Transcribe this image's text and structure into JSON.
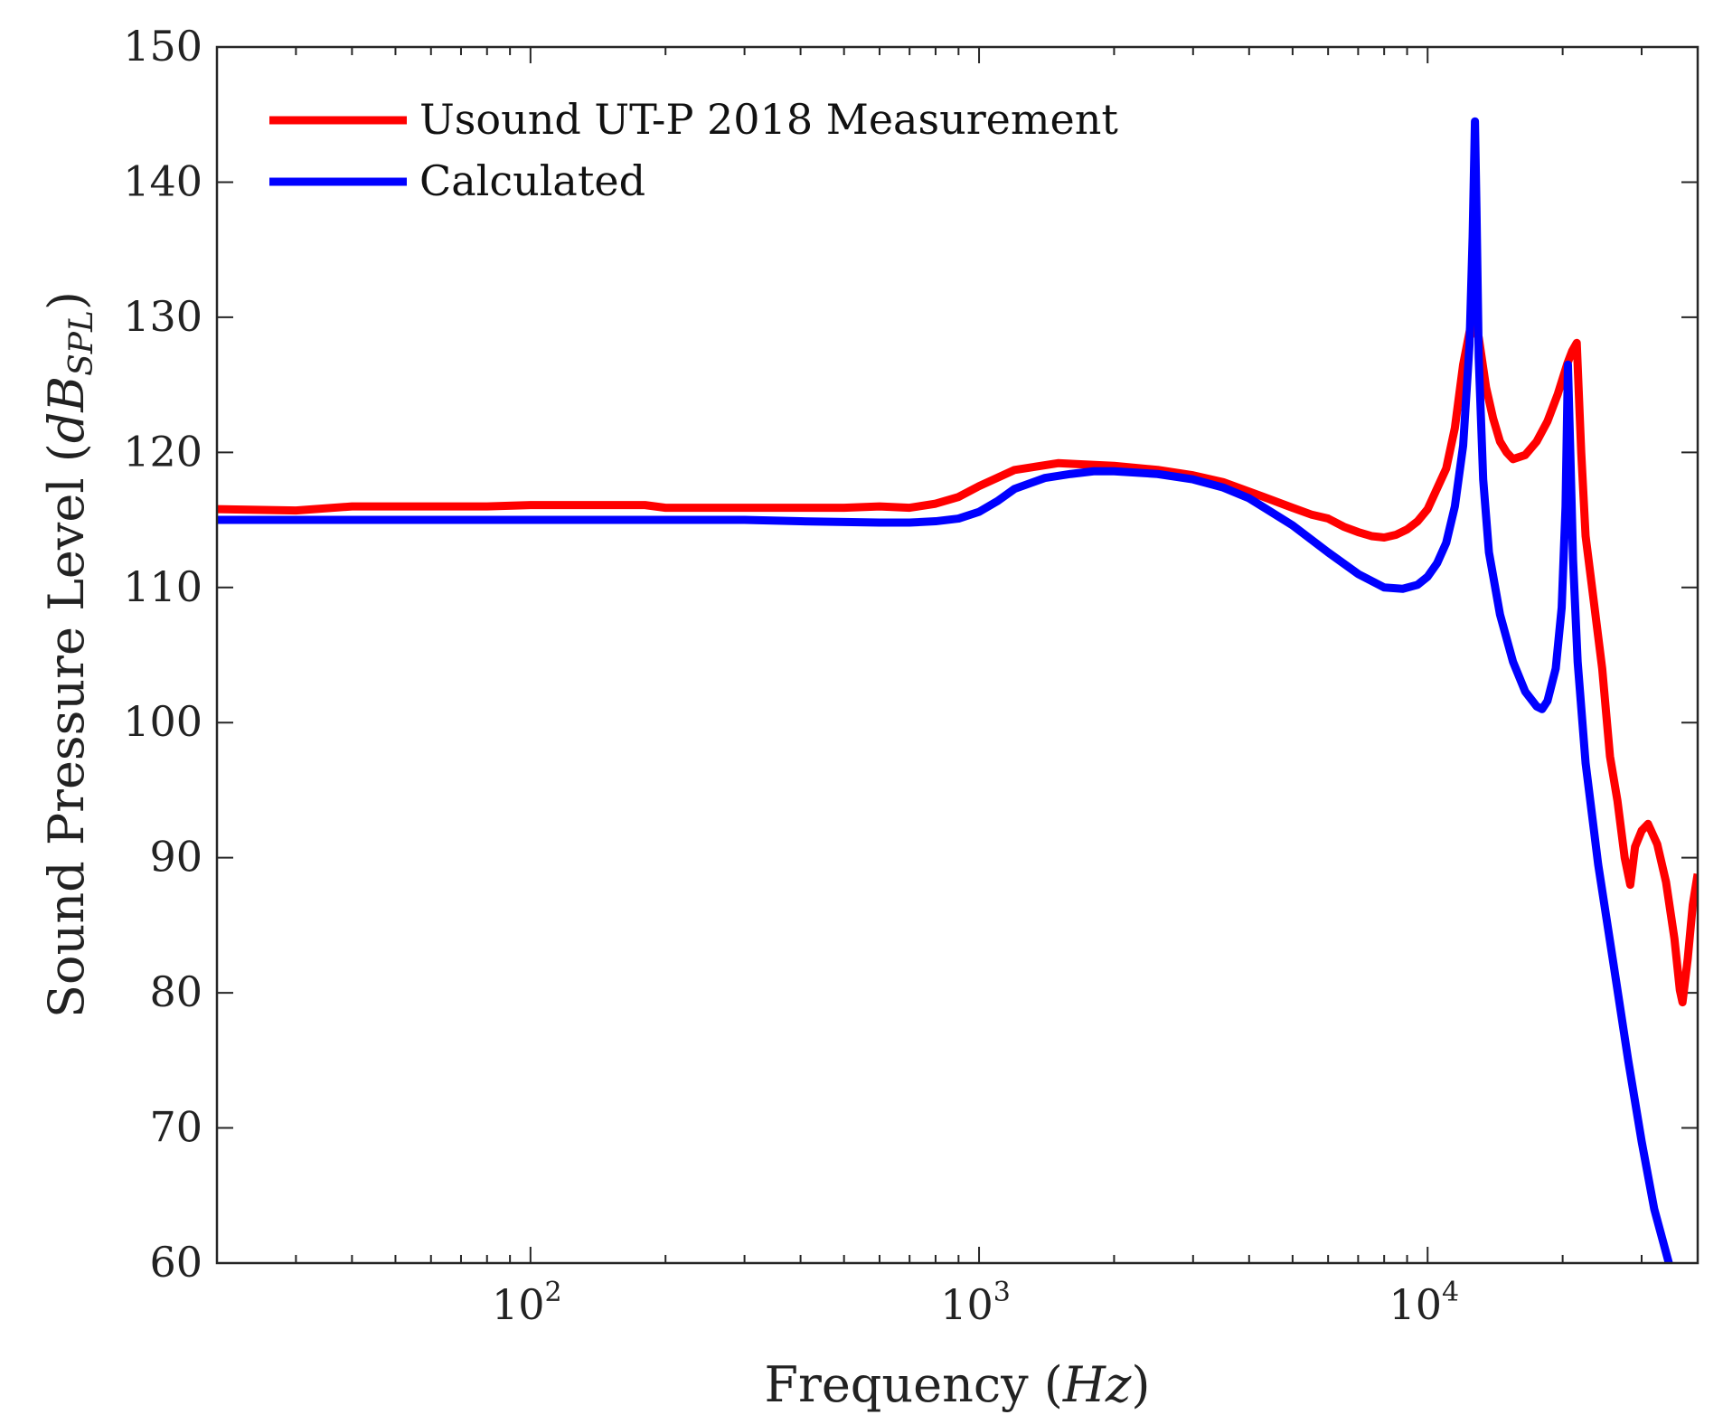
{
  "chart_data": {
    "type": "line",
    "xscale": "log",
    "xlim": [
      20,
      40000
    ],
    "ylim": [
      60,
      150
    ],
    "xlabel": {
      "prefix": "Frequency (",
      "var": "Hz",
      "suffix": ")"
    },
    "ylabel": {
      "prefix": "Sound Pressure Level (",
      "var": "dB",
      "sub": "SPL",
      "suffix": ")"
    },
    "x_ticks": [
      {
        "value": 100,
        "base": "10",
        "exp": "2"
      },
      {
        "value": 1000,
        "base": "10",
        "exp": "3"
      },
      {
        "value": 10000,
        "base": "10",
        "exp": "4"
      }
    ],
    "y_ticks": [
      {
        "value": 60,
        "label": "60"
      },
      {
        "value": 70,
        "label": "70"
      },
      {
        "value": 80,
        "label": "80"
      },
      {
        "value": 90,
        "label": "90"
      },
      {
        "value": 100,
        "label": "100"
      },
      {
        "value": 110,
        "label": "110"
      },
      {
        "value": 120,
        "label": "120"
      },
      {
        "value": 130,
        "label": "130"
      },
      {
        "value": 140,
        "label": "140"
      },
      {
        "value": 150,
        "label": "150"
      }
    ],
    "legend_position": "top-left",
    "series": [
      {
        "name": "Usound UT-P 2018 Measurement",
        "color": "#ff0000",
        "points": [
          [
            20,
            115.8
          ],
          [
            30,
            115.7
          ],
          [
            40,
            116.0
          ],
          [
            60,
            116.0
          ],
          [
            80,
            116.0
          ],
          [
            100,
            116.1
          ],
          [
            150,
            116.1
          ],
          [
            180,
            116.1
          ],
          [
            200,
            115.9
          ],
          [
            300,
            115.9
          ],
          [
            500,
            115.9
          ],
          [
            600,
            116.0
          ],
          [
            700,
            115.9
          ],
          [
            800,
            116.2
          ],
          [
            900,
            116.7
          ],
          [
            1000,
            117.5
          ],
          [
            1200,
            118.7
          ],
          [
            1500,
            119.2
          ],
          [
            2000,
            119.0
          ],
          [
            2500,
            118.7
          ],
          [
            3000,
            118.3
          ],
          [
            3500,
            117.8
          ],
          [
            4000,
            117.1
          ],
          [
            5000,
            115.9
          ],
          [
            5500,
            115.4
          ],
          [
            6000,
            115.1
          ],
          [
            6500,
            114.5
          ],
          [
            7000,
            114.1
          ],
          [
            7500,
            113.8
          ],
          [
            8000,
            113.7
          ],
          [
            8500,
            113.9
          ],
          [
            9000,
            114.3
          ],
          [
            9500,
            114.9
          ],
          [
            10000,
            115.8
          ],
          [
            11000,
            118.8
          ],
          [
            11500,
            121.8
          ],
          [
            12000,
            126.5
          ],
          [
            12500,
            129.5
          ],
          [
            13000,
            128.5
          ],
          [
            13500,
            124.8
          ],
          [
            14000,
            122.5
          ],
          [
            14500,
            120.8
          ],
          [
            15000,
            120.0
          ],
          [
            15500,
            119.5
          ],
          [
            16500,
            119.8
          ],
          [
            17500,
            120.8
          ],
          [
            18500,
            122.3
          ],
          [
            19500,
            124.3
          ],
          [
            20500,
            126.6
          ],
          [
            21000,
            127.5
          ],
          [
            21500,
            128.1
          ],
          [
            22000,
            120.0
          ],
          [
            22500,
            113.8
          ],
          [
            23500,
            108.8
          ],
          [
            24500,
            104.0
          ],
          [
            25500,
            97.5
          ],
          [
            26500,
            94.2
          ],
          [
            27500,
            90.0
          ],
          [
            28300,
            88.0
          ],
          [
            29000,
            90.8
          ],
          [
            30000,
            92.0
          ],
          [
            31000,
            92.5
          ],
          [
            32500,
            91.0
          ],
          [
            34000,
            88.2
          ],
          [
            35500,
            84.0
          ],
          [
            36500,
            80.2
          ],
          [
            37000,
            79.3
          ],
          [
            38000,
            82.5
          ],
          [
            39000,
            86.5
          ],
          [
            40000,
            88.8
          ]
        ]
      },
      {
        "name": "Calculated",
        "color": "#0000ff",
        "points": [
          [
            20,
            115.0
          ],
          [
            50,
            115.0
          ],
          [
            100,
            115.0
          ],
          [
            200,
            115.0
          ],
          [
            300,
            115.0
          ],
          [
            400,
            114.9
          ],
          [
            600,
            114.8
          ],
          [
            700,
            114.8
          ],
          [
            800,
            114.9
          ],
          [
            900,
            115.1
          ],
          [
            1000,
            115.6
          ],
          [
            1100,
            116.4
          ],
          [
            1200,
            117.3
          ],
          [
            1400,
            118.1
          ],
          [
            1600,
            118.4
          ],
          [
            1800,
            118.6
          ],
          [
            2000,
            118.6
          ],
          [
            2500,
            118.4
          ],
          [
            3000,
            118.0
          ],
          [
            3500,
            117.4
          ],
          [
            4000,
            116.6
          ],
          [
            5000,
            114.6
          ],
          [
            6000,
            112.6
          ],
          [
            7000,
            111.0
          ],
          [
            8000,
            110.0
          ],
          [
            8800,
            109.9
          ],
          [
            9500,
            110.2
          ],
          [
            10000,
            110.8
          ],
          [
            10500,
            111.8
          ],
          [
            11000,
            113.3
          ],
          [
            11500,
            116.0
          ],
          [
            12000,
            120.5
          ],
          [
            12400,
            128.0
          ],
          [
            12600,
            136.0
          ],
          [
            12750,
            144.5
          ],
          [
            12850,
            138.0
          ],
          [
            13000,
            127.0
          ],
          [
            13300,
            118.0
          ],
          [
            13700,
            112.6
          ],
          [
            14500,
            108.0
          ],
          [
            15500,
            104.5
          ],
          [
            16500,
            102.3
          ],
          [
            17500,
            101.2
          ],
          [
            18000,
            101.0
          ],
          [
            18500,
            101.6
          ],
          [
            19300,
            104.0
          ],
          [
            19900,
            108.5
          ],
          [
            20300,
            116.0
          ],
          [
            20550,
            126.5
          ],
          [
            20800,
            120.0
          ],
          [
            21100,
            112.0
          ],
          [
            21600,
            104.5
          ],
          [
            22500,
            97.0
          ],
          [
            24000,
            89.5
          ],
          [
            26000,
            82.0
          ],
          [
            28000,
            75.0
          ],
          [
            30000,
            69.0
          ],
          [
            32000,
            64.0
          ],
          [
            34500,
            60.0
          ]
        ]
      }
    ]
  }
}
